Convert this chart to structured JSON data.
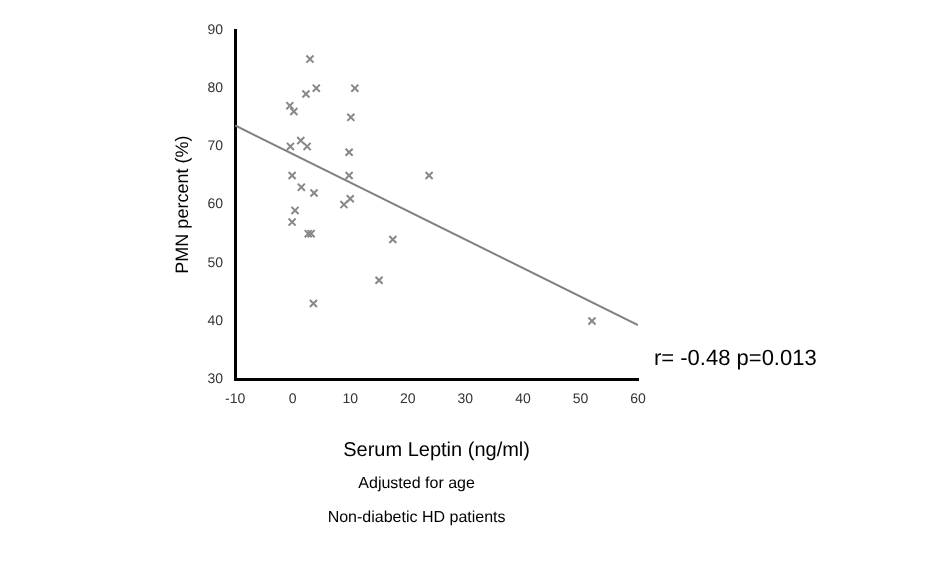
{
  "chart_data": {
    "type": "scatter",
    "xlabel": "Serum Leptin (ng/ml)",
    "ylabel": "PMN percent (%)",
    "xlim": [
      -10,
      60
    ],
    "xticks": [
      -10,
      0,
      10,
      20,
      30,
      40,
      50,
      60
    ],
    "ylim": [
      30,
      90
    ],
    "yticks": [
      30,
      40,
      50,
      60,
      70,
      80,
      90
    ],
    "grid": false,
    "legend": false,
    "marker": "cross",
    "annotations": [
      "r= -0.48 p=0.013",
      "Adjusted for age",
      "Non-diabetic HD patients"
    ],
    "series": [
      {
        "color": "#888888",
        "x": [
          3.0,
          4.1,
          10.8,
          2.3,
          -0.5,
          0.2,
          10.1,
          -0.4,
          1.4,
          2.5,
          9.8,
          -0.1,
          9.8,
          23.7,
          1.5,
          3.7,
          10.0,
          8.9,
          0.4,
          -0.1,
          2.7,
          3.2,
          17.4,
          15.0,
          3.6,
          52.0
        ],
        "values": [
          85,
          80,
          80,
          79,
          77,
          76,
          75,
          70,
          71,
          70,
          69,
          65,
          65,
          65,
          63,
          62,
          61,
          60,
          59,
          57,
          55,
          55,
          54,
          47,
          43,
          40
        ]
      },
      {
        "type": "line",
        "color": "#808080",
        "x": [
          -10,
          60
        ],
        "values": [
          73.6,
          39.3
        ],
        "marker": "none"
      }
    ]
  }
}
